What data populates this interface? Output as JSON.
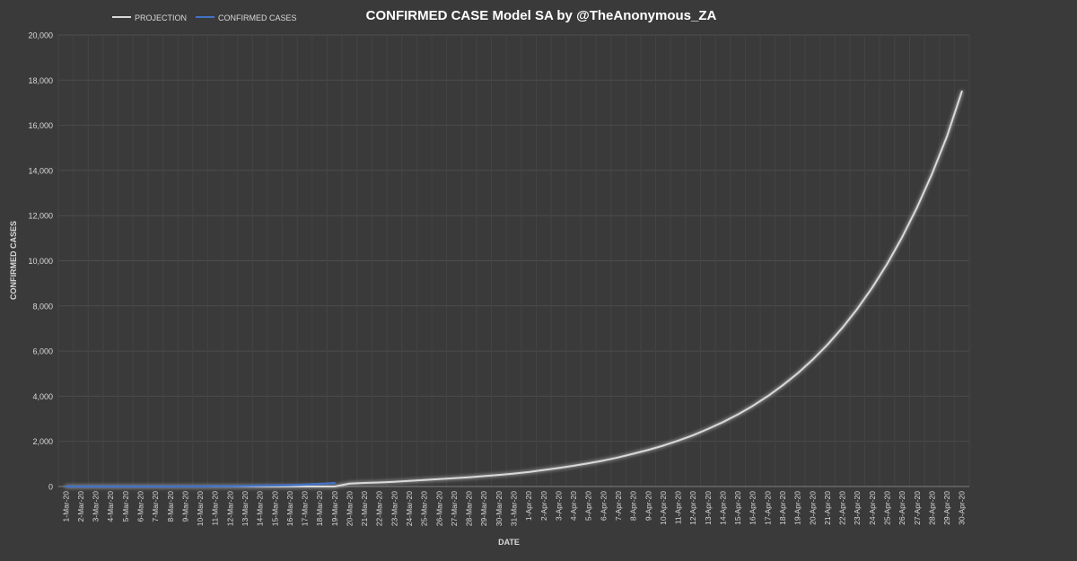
{
  "chart_data": {
    "type": "line",
    "title": "CONFIRMED CASE Model SA by @TheAnonymous_ZA",
    "xlabel": "DATE",
    "ylabel": "CONFIRMED CASES",
    "ylim": [
      0,
      20000
    ],
    "yticks": [
      0,
      2000,
      4000,
      6000,
      8000,
      10000,
      12000,
      14000,
      16000,
      18000,
      20000
    ],
    "ytick_labels": [
      "0",
      "2,000",
      "4,000",
      "6,000",
      "8,000",
      "10,000",
      "12,000",
      "14,000",
      "16,000",
      "18,000",
      "20,000"
    ],
    "grid": true,
    "legend_position": "top-left",
    "categories": [
      "1-Mar-20",
      "2-Mar-20",
      "3-Mar-20",
      "4-Mar-20",
      "5-Mar-20",
      "6-Mar-20",
      "7-Mar-20",
      "8-Mar-20",
      "9-Mar-20",
      "10-Mar-20",
      "11-Mar-20",
      "12-Mar-20",
      "13-Mar-20",
      "14-Mar-20",
      "15-Mar-20",
      "16-Mar-20",
      "17-Mar-20",
      "18-Mar-20",
      "19-Mar-20",
      "20-Mar-20",
      "21-Mar-20",
      "22-Mar-20",
      "23-Mar-20",
      "24-Mar-20",
      "25-Mar-20",
      "26-Mar-20",
      "27-Mar-20",
      "28-Mar-20",
      "29-Mar-20",
      "30-Mar-20",
      "31-Mar-20",
      "1-Apr-20",
      "2-Apr-20",
      "3-Apr-20",
      "4-Apr-20",
      "5-Apr-20",
      "6-Apr-20",
      "7-Apr-20",
      "8-Apr-20",
      "9-Apr-20",
      "10-Apr-20",
      "11-Apr-20",
      "12-Apr-20",
      "13-Apr-20",
      "14-Apr-20",
      "15-Apr-20",
      "16-Apr-20",
      "17-Apr-20",
      "18-Apr-20",
      "19-Apr-20",
      "20-Apr-20",
      "21-Apr-20",
      "22-Apr-20",
      "23-Apr-20",
      "24-Apr-20",
      "25-Apr-20",
      "26-Apr-20",
      "27-Apr-20",
      "28-Apr-20",
      "29-Apr-20",
      "30-Apr-20"
    ],
    "series": [
      {
        "name": "PROJECTION",
        "color": "#d9d9d9",
        "values": [
          0,
          0,
          0,
          0,
          0,
          0,
          0,
          0,
          0,
          0,
          0,
          0,
          0,
          0,
          0,
          0,
          0,
          0,
          0,
          130,
          160,
          180,
          210,
          250,
          290,
          330,
          370,
          410,
          460,
          510,
          570,
          640,
          730,
          820,
          920,
          1030,
          1150,
          1290,
          1450,
          1620,
          1810,
          2030,
          2270,
          2550,
          2850,
          3190,
          3570,
          4000,
          4480,
          5010,
          5610,
          6280,
          7030,
          7870,
          8810,
          9860,
          11040,
          12360,
          13840,
          15500,
          17500
        ]
      },
      {
        "name": "CONFIRMED CASES",
        "color": "#4472c4",
        "values": [
          0,
          0,
          0,
          0,
          1,
          1,
          1,
          1,
          3,
          7,
          13,
          16,
          24,
          38,
          51,
          62,
          85,
          116,
          150,
          null,
          null,
          null,
          null,
          null,
          null,
          null,
          null,
          null,
          null,
          null,
          null,
          null,
          null,
          null,
          null,
          null,
          null,
          null,
          null,
          null,
          null,
          null,
          null,
          null,
          null,
          null,
          null,
          null,
          null,
          null,
          null,
          null,
          null,
          null,
          null,
          null,
          null,
          null,
          null,
          null,
          null
        ]
      }
    ]
  }
}
